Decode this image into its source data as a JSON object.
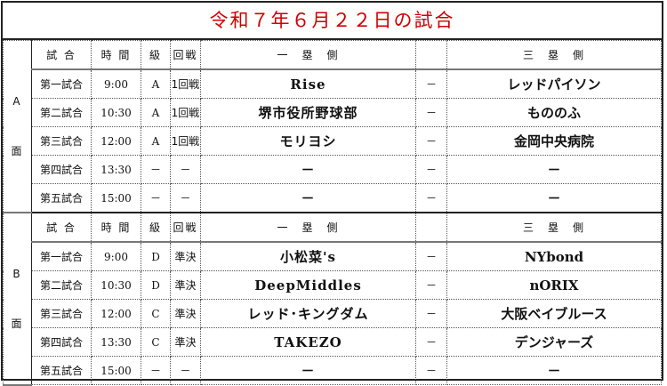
{
  "title": "令和７年６月２２日の試合",
  "headers": {
    "match": "試 合",
    "time": "時 間",
    "grade": "級",
    "round": "回戦",
    "first": "一　塁　側",
    "vs": "",
    "third": "三　塁　側"
  },
  "sections": [
    {
      "label": "A",
      "label2": "面",
      "rows": [
        {
          "match": "第一試合",
          "time": "9:00",
          "grade": "A",
          "round": "1回戦",
          "first": "Rise",
          "vs": "－",
          "third": "レッドパイソン"
        },
        {
          "match": "第二試合",
          "time": "10:30",
          "grade": "A",
          "round": "1回戦",
          "first": "堺市役所野球部",
          "vs": "－",
          "third": "もののふ"
        },
        {
          "match": "第三試合",
          "time": "12:00",
          "grade": "A",
          "round": "1回戦",
          "first": "モリヨシ",
          "vs": "－",
          "third": "金岡中央病院"
        },
        {
          "match": "第四試合",
          "time": "13:30",
          "grade": "－",
          "round": "－",
          "first": "－",
          "vs": "－",
          "third": "－"
        },
        {
          "match": "第五試合",
          "time": "15:00",
          "grade": "－",
          "round": "－",
          "first": "－",
          "vs": "－",
          "third": "－"
        }
      ]
    },
    {
      "label": "B",
      "label2": "面",
      "rows": [
        {
          "match": "第一試合",
          "time": "9:00",
          "grade": "D",
          "round": "準決",
          "first": "小松菜's",
          "vs": "－",
          "third": "NYbond"
        },
        {
          "match": "第二試合",
          "time": "10:30",
          "grade": "D",
          "round": "準決",
          "first": "DeepMiddles",
          "vs": "－",
          "third": "nORIX"
        },
        {
          "match": "第三試合",
          "time": "12:00",
          "grade": "C",
          "round": "準決",
          "first": "レッド･キングダム",
          "vs": "－",
          "third": "大阪ベイブルース"
        },
        {
          "match": "第四試合",
          "time": "13:30",
          "grade": "C",
          "round": "準決",
          "first": "TAKEZO",
          "vs": "－",
          "third": "デンジャーズ"
        },
        {
          "match": "第五試合",
          "time": "15:00",
          "grade": "－",
          "round": "－",
          "first": "－",
          "vs": "－",
          "third": "－"
        }
      ]
    }
  ]
}
